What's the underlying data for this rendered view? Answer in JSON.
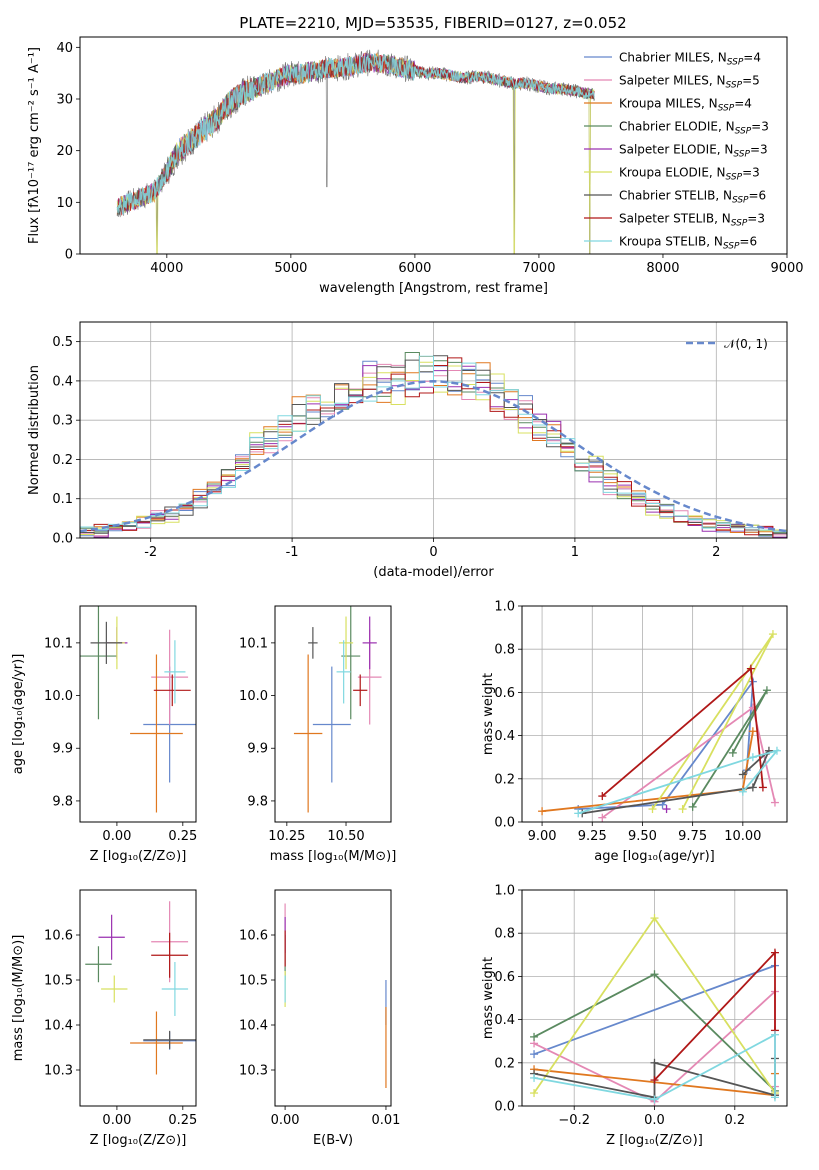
{
  "figure_title": "PLATE=2210, MJD=53535, FIBERID=0127, z=0.052",
  "colors": [
    "#6688cc",
    "#e488b4",
    "#e07820",
    "#5a8a60",
    "#9a30b0",
    "#d8e060",
    "#555555",
    "#b01818",
    "#80d8e0"
  ],
  "chart_data": [
    {
      "id": "spectrum",
      "type": "line",
      "title": "PLATE=2210, MJD=53535, FIBERID=0127, z=0.052",
      "xlabel": "wavelength [Angstrom, rest frame]",
      "ylabel": "Flux [fλ10⁻¹⁷ erg cm⁻² s⁻¹ A⁻¹]",
      "xlim": [
        3300,
        9000
      ],
      "ylim": [
        0,
        42
      ],
      "xticks": [
        4000,
        5000,
        6000,
        7000,
        8000,
        9000
      ],
      "yticks": [
        0,
        10,
        20,
        30,
        40
      ],
      "legend_position": "upper-right",
      "continuum": {
        "x": [
          3600,
          3700,
          3800,
          3900,
          4000,
          4100,
          4200,
          4300,
          4400,
          4500,
          4600,
          4700,
          4800,
          4900,
          5000,
          5100,
          5200,
          5300,
          5400,
          5500,
          5600,
          5700,
          5800,
          5900,
          6000,
          6100,
          6200,
          6300,
          6400,
          6500,
          6600,
          6700,
          6800,
          6900,
          7000,
          7100,
          7200,
          7300,
          7400
        ],
        "y": [
          9,
          10,
          11,
          12,
          16,
          20,
          22,
          24,
          26,
          29,
          31,
          32,
          33,
          34,
          35,
          35,
          35.5,
          36,
          36,
          36.5,
          37,
          37,
          36.5,
          36,
          35.5,
          35,
          35,
          34.5,
          34,
          34.5,
          34,
          33.5,
          33,
          33,
          32.5,
          32,
          32,
          31.5,
          31
        ]
      },
      "dips": [
        {
          "x": 3920,
          "y": 0
        },
        {
          "x": 5290,
          "y": 13
        },
        {
          "x": 6800,
          "y": 0
        },
        {
          "x": 7410,
          "y": 0
        }
      ],
      "series": [
        {
          "name": "Chabrier MILES, NSSP=4",
          "label_main": "Chabrier MILES, N",
          "label_sub": "SSP",
          "label_tail": "=4",
          "color": "#6688cc"
        },
        {
          "name": "Salpeter MILES, NSSP=5",
          "label_main": "Salpeter MILES, N",
          "label_sub": "SSP",
          "label_tail": "=5",
          "color": "#e488b4"
        },
        {
          "name": "Kroupa MILES, NSSP=4",
          "label_main": "Kroupa MILES, N",
          "label_sub": "SSP",
          "label_tail": "=4",
          "color": "#e07820"
        },
        {
          "name": "Chabrier ELODIE, NSSP=3",
          "label_main": "Chabrier ELODIE, N",
          "label_sub": "SSP",
          "label_tail": "=3",
          "color": "#5a8a60"
        },
        {
          "name": "Salpeter ELODIE, NSSP=3",
          "label_main": "Salpeter ELODIE, N",
          "label_sub": "SSP",
          "label_tail": "=3",
          "color": "#9a30b0"
        },
        {
          "name": "Kroupa ELODIE, NSSP=3",
          "label_main": "Kroupa ELODIE, N",
          "label_sub": "SSP",
          "label_tail": "=3",
          "color": "#d8e060"
        },
        {
          "name": "Chabrier STELIB, NSSP=6",
          "label_main": "Chabrier STELIB, N",
          "label_sub": "SSP",
          "label_tail": "=6",
          "color": "#555555"
        },
        {
          "name": "Salpeter STELIB, NSSP=3",
          "label_main": "Salpeter STELIB, N",
          "label_sub": "SSP",
          "label_tail": "=3",
          "color": "#b01818"
        },
        {
          "name": "Kroupa STELIB, NSSP=6",
          "label_main": "Kroupa STELIB, N",
          "label_sub": "SSP",
          "label_tail": "=6",
          "color": "#80d8e0"
        }
      ]
    },
    {
      "id": "residuals",
      "type": "line",
      "xlabel": "(data-model)/error",
      "ylabel": "Normed distribution",
      "xlim": [
        -2.5,
        2.5
      ],
      "ylim": [
        0,
        0.55
      ],
      "xticks": [
        -2,
        -1,
        0,
        1,
        2
      ],
      "yticks": [
        0.0,
        0.1,
        0.2,
        0.3,
        0.4,
        0.5
      ],
      "grid": true,
      "legend_label": "𝒩(0, 1)",
      "bin_width": 0.1,
      "bin_start": -2.5,
      "hist_heights": [
        0.015,
        0.02,
        0.025,
        0.03,
        0.04,
        0.05,
        0.06,
        0.08,
        0.1,
        0.12,
        0.15,
        0.19,
        0.24,
        0.26,
        0.28,
        0.31,
        0.34,
        0.36,
        0.37,
        0.38,
        0.39,
        0.4,
        0.4,
        0.41,
        0.42,
        0.42,
        0.41,
        0.4,
        0.38,
        0.36,
        0.34,
        0.31,
        0.29,
        0.26,
        0.23,
        0.2,
        0.17,
        0.14,
        0.12,
        0.1,
        0.08,
        0.07,
        0.05,
        0.04,
        0.035,
        0.03,
        0.025,
        0.02,
        0.015,
        0.01
      ]
    },
    {
      "id": "age-vs-z",
      "type": "scatter",
      "xlabel": "Z [log₁₀(Z/Z⊙)]",
      "ylabel": "age  [log₁₀(age/yr)]",
      "xlim": [
        -0.14,
        0.3
      ],
      "ylim": [
        9.76,
        10.17
      ],
      "xticks": [
        0.0,
        0.25
      ],
      "xticklabels": [
        "0.00",
        "0.25"
      ],
      "yticks": [
        9.8,
        9.9,
        10.0,
        10.1
      ],
      "points": [
        {
          "x": 0.2,
          "y": 9.945,
          "xerr": 0.1,
          "yerr": 0.11,
          "c": 0
        },
        {
          "x": 0.2,
          "y": 10.035,
          "xerr": 0.07,
          "yerr": 0.09,
          "c": 1
        },
        {
          "x": 0.15,
          "y": 9.928,
          "xerr": 0.1,
          "yerr": 0.15,
          "c": 2
        },
        {
          "x": -0.07,
          "y": 10.075,
          "xerr": 0.07,
          "yerr": 0.12,
          "c": 3
        },
        {
          "x": 0.0,
          "y": 10.1,
          "xerr": 0.04,
          "yerr": 0.03,
          "c": 4
        },
        {
          "x": 0.0,
          "y": 10.1,
          "xerr": 0.03,
          "yerr": 0.05,
          "c": 5
        },
        {
          "x": -0.04,
          "y": 10.1,
          "xerr": 0.06,
          "yerr": 0.04,
          "c": 6
        },
        {
          "x": 0.21,
          "y": 10.01,
          "xerr": 0.07,
          "yerr": 0.03,
          "c": 7
        },
        {
          "x": 0.22,
          "y": 10.045,
          "xerr": 0.04,
          "yerr": 0.06,
          "c": 8
        }
      ]
    },
    {
      "id": "age-vs-mass",
      "type": "scatter",
      "xlabel": "mass [log₁₀(M/M⊙)]",
      "xlim": [
        10.2,
        10.69
      ],
      "ylim": [
        9.76,
        10.17
      ],
      "xticks": [
        10.25,
        10.5
      ],
      "xticklabels": [
        "10.25",
        "10.50"
      ],
      "yticks": [
        9.8,
        9.9,
        10.0,
        10.1
      ],
      "points": [
        {
          "x": 10.44,
          "y": 9.945,
          "xerr": 0.08,
          "yerr": 0.11,
          "c": 0
        },
        {
          "x": 10.6,
          "y": 10.035,
          "xerr": 0.05,
          "yerr": 0.09,
          "c": 1
        },
        {
          "x": 10.34,
          "y": 9.928,
          "xerr": 0.06,
          "yerr": 0.15,
          "c": 2
        },
        {
          "x": 10.52,
          "y": 10.075,
          "xerr": 0.04,
          "yerr": 0.12,
          "c": 3
        },
        {
          "x": 10.6,
          "y": 10.1,
          "xerr": 0.03,
          "yerr": 0.05,
          "c": 4
        },
        {
          "x": 10.5,
          "y": 10.1,
          "xerr": 0.03,
          "yerr": 0.05,
          "c": 5
        },
        {
          "x": 10.36,
          "y": 10.1,
          "xerr": 0.02,
          "yerr": 0.03,
          "c": 6
        },
        {
          "x": 10.56,
          "y": 10.01,
          "xerr": 0.03,
          "yerr": 0.03,
          "c": 7
        },
        {
          "x": 10.49,
          "y": 10.045,
          "xerr": 0.03,
          "yerr": 0.06,
          "c": 8
        }
      ]
    },
    {
      "id": "massweight-vs-age",
      "type": "line",
      "xlabel": "age  [log₁₀(age/yr)]",
      "ylabel": "mass weight",
      "xlim": [
        8.9,
        10.22
      ],
      "ylim": [
        0,
        1.0
      ],
      "xticks": [
        9.0,
        9.25,
        9.5,
        9.75,
        10.0
      ],
      "xticklabels": [
        "9.00",
        "9.25",
        "9.50",
        "9.75",
        "10.00"
      ],
      "yticks": [
        0.0,
        0.2,
        0.4,
        0.6,
        0.8,
        1.0
      ],
      "grid": true,
      "series": [
        {
          "c": 0,
          "x": [
            9.18,
            9.6,
            10.05,
            10.02
          ],
          "y": [
            0.06,
            0.08,
            0.65,
            0.24
          ]
        },
        {
          "c": 1,
          "x": [
            9.3,
            10.05,
            10.16
          ],
          "y": [
            0.02,
            0.53,
            0.09
          ]
        },
        {
          "c": 2,
          "x": [
            9.0,
            10.0,
            10.05
          ],
          "y": [
            0.05,
            0.15,
            0.42
          ]
        },
        {
          "c": 3,
          "x": [
            9.75,
            10.12,
            9.95
          ],
          "y": [
            0.07,
            0.61,
            0.32
          ]
        },
        {
          "c": 4,
          "x": [
            9.62
          ],
          "y": [
            0.06
          ]
        },
        {
          "c": 5,
          "x": [
            9.55,
            10.15,
            9.7
          ],
          "y": [
            0.06,
            0.87,
            0.06
          ]
        },
        {
          "c": 6,
          "x": [
            9.2,
            10.05,
            10.13,
            10.0
          ],
          "y": [
            0.04,
            0.16,
            0.33,
            0.22
          ]
        },
        {
          "c": 7,
          "x": [
            9.3,
            10.04,
            10.1
          ],
          "y": [
            0.12,
            0.71,
            0.16
          ]
        },
        {
          "c": 8,
          "x": [
            9.18,
            10.05,
            10.17,
            10.0
          ],
          "y": [
            0.04,
            0.3,
            0.33,
            0.14
          ]
        }
      ]
    },
    {
      "id": "mass-vs-z",
      "type": "scatter",
      "xlabel": "Z [log₁₀(Z/Z⊙)]",
      "ylabel": "mass [log₁₀(M/M⊙)]",
      "xlim": [
        -0.14,
        0.3
      ],
      "ylim": [
        10.22,
        10.7
      ],
      "xticks": [
        0.0,
        0.25
      ],
      "xticklabels": [
        "0.00",
        "0.25"
      ],
      "yticks": [
        10.3,
        10.4,
        10.5,
        10.6
      ],
      "points": [
        {
          "x": 0.2,
          "y": 10.365,
          "xerr": 0.1,
          "yerr": 0.02,
          "c": 0
        },
        {
          "x": 0.2,
          "y": 10.585,
          "xerr": 0.07,
          "yerr": 0.09,
          "c": 1
        },
        {
          "x": 0.15,
          "y": 10.36,
          "xerr": 0.1,
          "yerr": 0.07,
          "c": 2
        },
        {
          "x": -0.07,
          "y": 10.535,
          "xerr": 0.05,
          "yerr": 0.04,
          "c": 3
        },
        {
          "x": -0.02,
          "y": 10.595,
          "xerr": 0.05,
          "yerr": 0.05,
          "c": 4
        },
        {
          "x": -0.01,
          "y": 10.48,
          "xerr": 0.05,
          "yerr": 0.03,
          "c": 5
        },
        {
          "x": 0.2,
          "y": 10.367,
          "xerr": 0.1,
          "yerr": 0.02,
          "c": 6
        },
        {
          "x": 0.2,
          "y": 10.555,
          "xerr": 0.07,
          "yerr": 0.05,
          "c": 7
        },
        {
          "x": 0.22,
          "y": 10.48,
          "xerr": 0.05,
          "yerr": 0.06,
          "c": 8
        }
      ]
    },
    {
      "id": "mass-vs-ebv",
      "type": "scatter",
      "xlabel": "E(B-V)",
      "xlim": [
        -0.001,
        0.0105
      ],
      "ylim": [
        10.22,
        10.7
      ],
      "xticks": [
        0.0,
        0.01
      ],
      "xticklabels": [
        "0.00",
        "0.01"
      ],
      "yticks": [
        10.3,
        10.4,
        10.5,
        10.6
      ],
      "points": [
        {
          "x": 0.01,
          "y": 10.45,
          "xerr": 0.0,
          "yerr": 0.05,
          "c": 0
        },
        {
          "x": 0.0,
          "y": 10.6,
          "xerr": 0.0,
          "yerr": 0.07,
          "c": 1
        },
        {
          "x": 0.01,
          "y": 10.35,
          "xerr": 0.0,
          "yerr": 0.09,
          "c": 2
        },
        {
          "x": 0.0,
          "y": 10.55,
          "xerr": 0.0,
          "yerr": 0.05,
          "c": 3
        },
        {
          "x": 0.0,
          "y": 10.6,
          "xerr": 0.0,
          "yerr": 0.04,
          "c": 4
        },
        {
          "x": 0.0,
          "y": 10.48,
          "xerr": 0.0,
          "yerr": 0.04,
          "c": 5
        },
        {
          "x": 0.0,
          "y": 10.57,
          "xerr": 0.0,
          "yerr": 0.04,
          "c": 7
        },
        {
          "x": 0.0,
          "y": 10.48,
          "xerr": 0.0,
          "yerr": 0.03,
          "c": 8
        }
      ]
    },
    {
      "id": "massweight-vs-z",
      "type": "line",
      "xlabel": "Z [log₁₀(Z/Z⊙)]",
      "ylabel": "mass weight",
      "xlim": [
        -0.33,
        0.33
      ],
      "ylim": [
        0,
        1.0
      ],
      "xticks": [
        -0.2,
        0.0,
        0.2
      ],
      "xticklabels": [
        "−0.2",
        "0.0",
        "0.2"
      ],
      "yticks": [
        0.0,
        0.2,
        0.4,
        0.6,
        0.8,
        1.0
      ],
      "grid": true,
      "series": [
        {
          "c": 0,
          "x": [
            -0.3,
            0.3
          ],
          "y": [
            0.24,
            0.65
          ]
        },
        {
          "c": 1,
          "x": [
            -0.3,
            0.0,
            0.3,
            0.3
          ],
          "y": [
            0.29,
            0.02,
            0.53,
            0.09
          ]
        },
        {
          "c": 2,
          "x": [
            -0.3,
            0.3,
            0.3
          ],
          "y": [
            0.17,
            0.05,
            0.15
          ]
        },
        {
          "c": 3,
          "x": [
            -0.3,
            0.0,
            0.3
          ],
          "y": [
            0.32,
            0.61,
            0.07
          ]
        },
        {
          "c": 5,
          "x": [
            -0.3,
            0.0,
            0.3
          ],
          "y": [
            0.06,
            0.87,
            0.06
          ]
        },
        {
          "c": 6,
          "x": [
            -0.3,
            0.0,
            0.0,
            0.3,
            0.3
          ],
          "y": [
            0.15,
            0.04,
            0.2,
            0.05,
            0.22
          ]
        },
        {
          "c": 7,
          "x": [
            0.0,
            0.3,
            0.3
          ],
          "y": [
            0.12,
            0.71,
            0.35
          ]
        },
        {
          "c": 8,
          "x": [
            -0.3,
            0.0,
            0.3,
            0.3
          ],
          "y": [
            0.13,
            0.03,
            0.33,
            0.04
          ]
        }
      ]
    }
  ]
}
